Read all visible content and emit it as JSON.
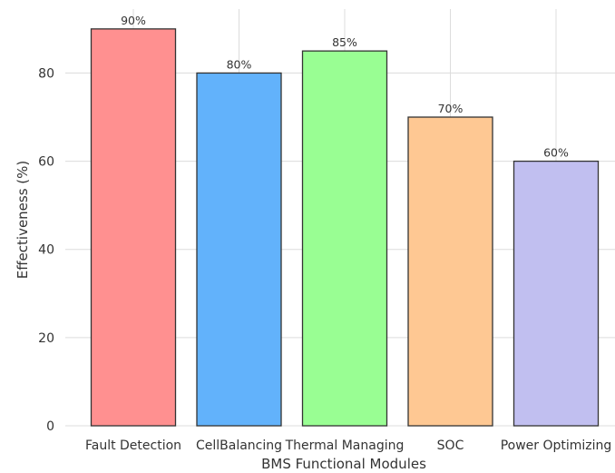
{
  "chart_data": {
    "type": "bar",
    "categories": [
      "Fault Detection",
      "CellBalancing",
      "Thermal Managing",
      "SOC",
      "Power Optimizing"
    ],
    "values": [
      90,
      80,
      85,
      70,
      60
    ],
    "value_labels": [
      "90%",
      "80%",
      "85%",
      "70%",
      "60%"
    ],
    "colors": [
      "#ff9090",
      "#62b2fb",
      "#99fe93",
      "#fec893",
      "#c1bff0"
    ],
    "title": "",
    "xlabel": "BMS Functional Modules",
    "ylabel": "Effectiveness (%)",
    "ylim": [
      0,
      94.5
    ],
    "yticks": [
      "0",
      "20",
      "40",
      "60",
      "80"
    ],
    "grid": true,
    "legend": "none"
  }
}
